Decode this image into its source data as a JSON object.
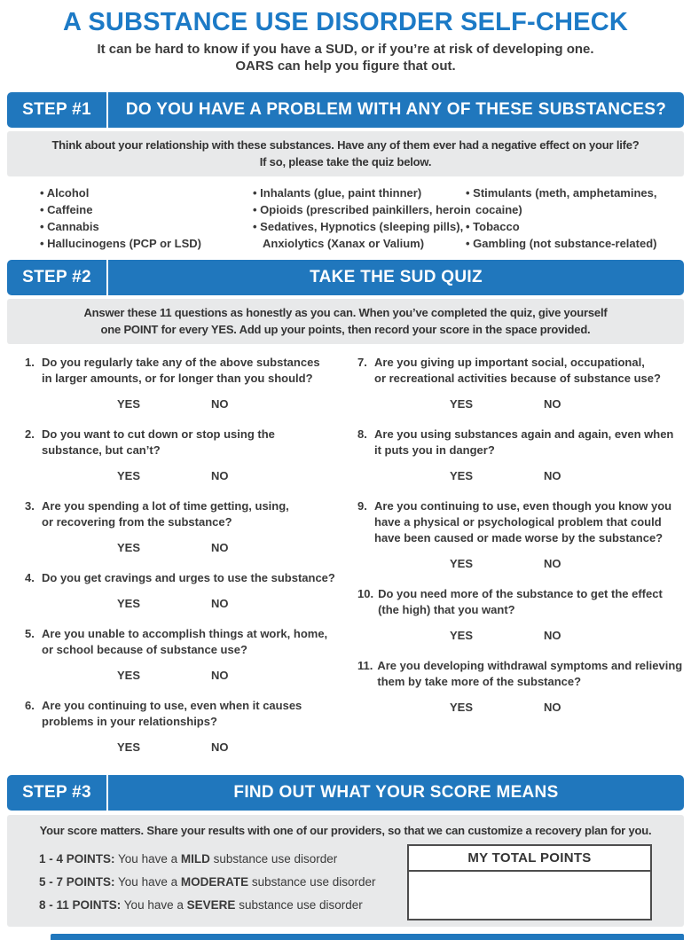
{
  "colors": {
    "bar_blue": "#2077bd",
    "title_blue": "#1c7ac6",
    "panel_gray": "#e8e9ea",
    "text_dark": "#3a3a3a"
  },
  "header": {
    "title": "A SUBSTANCE USE DISORDER SELF-CHECK",
    "subtitle": "It can be hard to know if you have a SUD, or if you’re at risk of developing one.\nOARS can help you figure that out."
  },
  "step1": {
    "label": "STEP #1",
    "heading": "DO YOU HAVE A PROBLEM WITH ANY OF THESE SUBSTANCES?",
    "instruction": "Think about your relationship with these substances. Have any of them ever had a negative effect on your life?\nIf so, please take the quiz below."
  },
  "substances": {
    "col1": [
      "Alcohol",
      "Caffeine",
      "Cannabis",
      "Hallucinogens (PCP or LSD)"
    ],
    "col2": [
      "Inhalants (glue, paint thinner)",
      "Opioids (prescribed painkillers, heroin",
      "Sedatives, Hypnotics (sleeping pills),\nAnxiolytics (Xanax or Valium)"
    ],
    "col3": [
      "Stimulants (meth, amphetamines,\ncocaine)",
      "Tobacco",
      "Gambling (not substance-related)"
    ]
  },
  "step2": {
    "label": "STEP #2",
    "heading": "TAKE THE SUD QUIZ",
    "instruction": "Answer these 11 questions as honestly as you can. When you’ve completed the quiz, give yourself\none POINT for every YES. Add up your points, then record your score in the space provided."
  },
  "quiz": {
    "yes": "YES",
    "no": "NO",
    "questions": [
      {
        "num": "1.",
        "text": "Do you regularly take any of the above substances\nin larger amounts, or for longer than you should?"
      },
      {
        "num": "2.",
        "text": "Do you want to cut down or stop using the\nsubstance, but can’t?"
      },
      {
        "num": "3.",
        "text": "Are you spending a lot of time getting, using,\nor recovering from the substance?"
      },
      {
        "num": "4.",
        "text": "Do you get cravings and urges to use the substance?"
      },
      {
        "num": "5.",
        "text": "Are you unable to accomplish things at work, home,\nor school because of substance use?"
      },
      {
        "num": "6.",
        "text": "Are you continuing to use, even when it causes\nproblems in your relationships?"
      },
      {
        "num": "7.",
        "text": "Are you giving up important social, occupational,\nor recreational activities because of substance use?"
      },
      {
        "num": "8.",
        "text": "Are you using substances again and again, even when\nit puts you in danger?"
      },
      {
        "num": "9.",
        "text": "Are you continuing to use, even though you know you\nhave a physical or psychological problem that could\nhave been caused or made worse by the substance?"
      },
      {
        "num": "10.",
        "text": "Do you need more of the substance to get the effect\n(the high) that you want?"
      },
      {
        "num": "11.",
        "text": "Are you developing withdrawal symptoms and relieving\nthem by take more of the substance?"
      }
    ]
  },
  "step3": {
    "label": "STEP #3",
    "heading": "FIND OUT WHAT YOUR SCORE MEANS",
    "instruction": "Your score matters. Share your results with one of our providers, so that we can customize a recovery plan for you."
  },
  "score": {
    "ranges": [
      {
        "points": "1 - 4 POINTS:",
        "before": "You have a",
        "level": "MILD",
        "after": "substance use disorder"
      },
      {
        "points": "5 - 7 POINTS:",
        "before": "You have a",
        "level": "MODERATE",
        "after": "substance use disorder"
      },
      {
        "points": "8 - 11 POINTS:",
        "before": "You have a",
        "level": "SEVERE",
        "after": "substance use disorder"
      }
    ],
    "total_label": "MY TOTAL POINTS"
  }
}
